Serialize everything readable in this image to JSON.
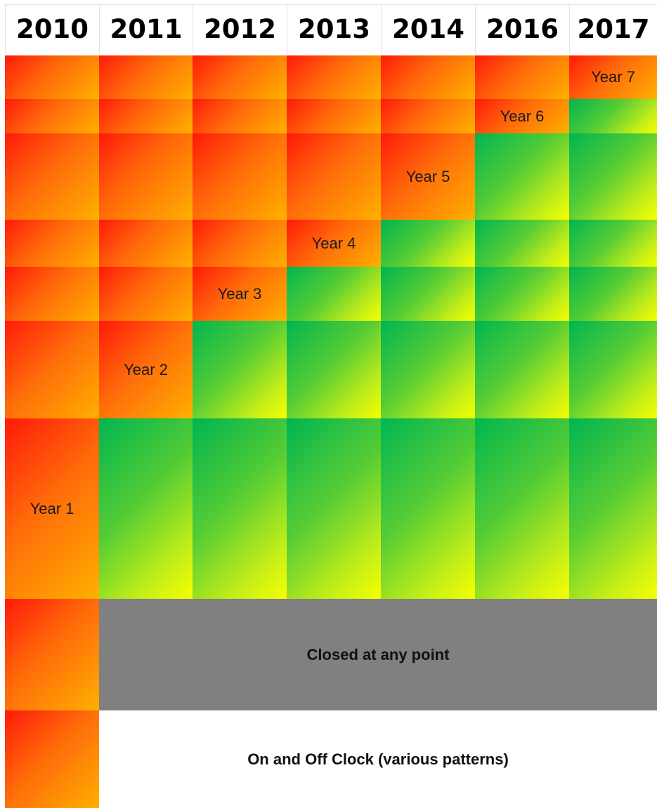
{
  "headers": [
    "2010",
    "2011",
    "2012",
    "2013",
    "2014",
    "2016",
    "2017"
  ],
  "cohort_labels": [
    "Year 1",
    "Year 2",
    "Year 3",
    "Year 4",
    "Year 5",
    "Year 6",
    "Year 7"
  ],
  "bands": {
    "closed": "Closed at any point",
    "on_off": "On and Off Clock (various patterns)"
  },
  "colors": {
    "active_red": "#ff3a0a",
    "active_orange": "#ffb000",
    "green": "#00b550",
    "green_yellow": "#f6ff00",
    "closed_grey": "#808080"
  }
}
